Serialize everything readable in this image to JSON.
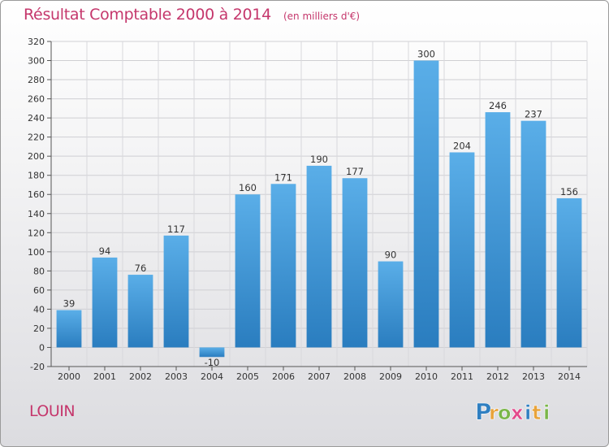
{
  "header": {
    "title": "Résultat Comptable 2000 à 2014",
    "subtitle": "(en milliers d'€)"
  },
  "commune": "LOUIN",
  "logo": {
    "letters": [
      "P",
      "r",
      "o",
      "x",
      "i",
      "t",
      "i"
    ],
    "colors": [
      "#2f7fc1",
      "#e8a33a",
      "#7ab648",
      "#e34a8b",
      "#2f7fc1",
      "#e8a33a",
      "#7ab648"
    ]
  },
  "colors": {
    "title": "#c5376c",
    "bar_light": "#5aaee8",
    "bar_dark": "#2a7dbf"
  },
  "chart_data": {
    "type": "bar",
    "title": "Résultat Comptable 2000 à 2014",
    "subtitle": "(en milliers d'€)",
    "categories": [
      "2000",
      "2001",
      "2002",
      "2003",
      "2004",
      "2005",
      "2006",
      "2007",
      "2008",
      "2009",
      "2010",
      "2011",
      "2012",
      "2013",
      "2014"
    ],
    "values": [
      39,
      94,
      76,
      117,
      -10,
      160,
      171,
      190,
      177,
      90,
      300,
      204,
      246,
      237,
      156
    ],
    "value_labels": [
      "39",
      "94",
      "76",
      "117",
      "-10",
      "160",
      "171",
      "190",
      "177",
      "90",
      "300",
      "204",
      "246",
      "237",
      "156"
    ],
    "yticks": [
      -20,
      0,
      20,
      40,
      60,
      80,
      100,
      120,
      140,
      160,
      180,
      200,
      220,
      240,
      260,
      280,
      300,
      320
    ],
    "ylim": [
      -20,
      320
    ],
    "xlabel": "",
    "ylabel": "",
    "grid": true,
    "legend": "none"
  }
}
